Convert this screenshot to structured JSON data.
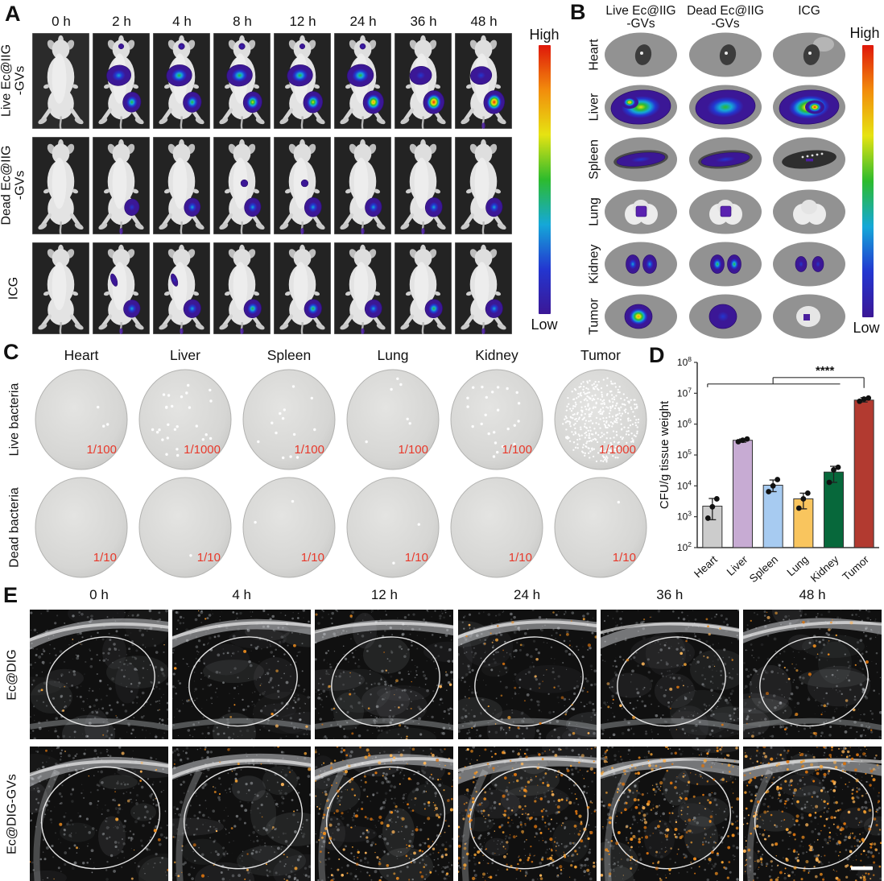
{
  "heat_colorbar": {
    "high": "High",
    "low": "Low",
    "stops": [
      "#df170a",
      "#f28c0c",
      "#e6e312",
      "#2dbb2d",
      "#15a8d8",
      "#2336d0",
      "#3b1796"
    ]
  },
  "panelA": {
    "label": "A",
    "timepoints": [
      "0 h",
      "2 h",
      "4 h",
      "8 h",
      "12 h",
      "24 h",
      "36 h",
      "48 h"
    ],
    "row_labels": [
      "Live Ec@IIG\n-GVs",
      "Dead Ec@IIG\n-GVs",
      "ICG"
    ],
    "signals": [
      [
        {
          "liver": 0,
          "tumor": 0,
          "neck": 0
        },
        {
          "liver": 0.42,
          "tumor": 0.58,
          "neck": 0.12
        },
        {
          "liver": 0.5,
          "tumor": 0.6,
          "neck": 0.3
        },
        {
          "liver": 0.52,
          "tumor": 0.66,
          "neck": 0.3
        },
        {
          "liver": 0.5,
          "tumor": 0.72,
          "neck": 0.12
        },
        {
          "liver": 0.58,
          "tumor": 0.88,
          "neck": 0.2
        },
        {
          "liver": 0.22,
          "tumor": 0.92,
          "neck": 0
        },
        {
          "liver": 0.18,
          "tumor": 0.92,
          "neck": 0
        }
      ],
      [
        {
          "liver": 0,
          "tumor": 0,
          "neck": 0
        },
        {
          "liver": 0,
          "tumor": 0.18,
          "neck": 0
        },
        {
          "liver": 0,
          "tumor": 0.35,
          "neck": 0
        },
        {
          "liver": 0.14,
          "tumor": 0.38,
          "neck": 0
        },
        {
          "liver": 0.15,
          "tumor": 0.45,
          "neck": 0
        },
        {
          "liver": 0,
          "tumor": 0.4,
          "neck": 0
        },
        {
          "liver": 0,
          "tumor": 0.45,
          "neck": 0
        },
        {
          "liver": 0,
          "tumor": 0.4,
          "neck": 0
        }
      ],
      [
        {
          "liver": 0,
          "tumor": 0,
          "neck": 0
        },
        {
          "liver": 0.16,
          "tumor": 0.4,
          "neck": 0
        },
        {
          "liver": 0.18,
          "tumor": 0.48,
          "neck": 0
        },
        {
          "liver": 0,
          "tumor": 0.5,
          "neck": 0
        },
        {
          "liver": 0,
          "tumor": 0.5,
          "neck": 0
        },
        {
          "liver": 0,
          "tumor": 0.45,
          "neck": 0
        },
        {
          "liver": 0,
          "tumor": 0.5,
          "neck": 0
        },
        {
          "liver": 0,
          "tumor": 0.48,
          "neck": 0
        }
      ]
    ]
  },
  "panelB": {
    "label": "B",
    "col_headers": [
      "Live Ec@IIG\n-GVs",
      "Dead Ec@IIG\n-GVs",
      "ICG"
    ],
    "row_labels": [
      "Heart",
      "Liver",
      "Spleen",
      "Lung",
      "Kidney",
      "Tumor"
    ],
    "cells": [
      [
        {
          "signal": 0,
          "variant": "plain"
        },
        {
          "signal": 0,
          "variant": "plain"
        },
        {
          "signal": 0,
          "variant": "patch"
        }
      ],
      [
        {
          "signal": 0.72,
          "variant": "hotspot-left"
        },
        {
          "signal": 0.6,
          "variant": "plain"
        },
        {
          "signal": 0.82,
          "variant": "hotspot-center"
        }
      ],
      [
        {
          "signal": 0.2,
          "variant": "plain"
        },
        {
          "signal": 0.33,
          "variant": "plain"
        },
        {
          "signal": 0.08,
          "variant": "dark"
        }
      ],
      [
        {
          "signal": 0.14,
          "variant": "plain"
        },
        {
          "signal": 0.14,
          "variant": "plain"
        },
        {
          "signal": 0,
          "variant": "white"
        }
      ],
      [
        {
          "signal": 0.36,
          "variant": "plain"
        },
        {
          "signal": 0.55,
          "variant": "plain"
        },
        {
          "signal": 0.3,
          "variant": "small"
        }
      ],
      [
        {
          "signal": 0.85,
          "variant": "ring"
        },
        {
          "signal": 0.3,
          "variant": "plain"
        },
        {
          "signal": 0.12,
          "variant": "white"
        }
      ]
    ]
  },
  "panelC": {
    "label": "C",
    "organ_headers": [
      "Heart",
      "Liver",
      "Spleen",
      "Lung",
      "Kidney",
      "Tumor"
    ],
    "dilution_color": "#e8392b",
    "rows": [
      {
        "label": "Live bacteria",
        "dilutions": [
          "1/100",
          "1/1000",
          "1/100",
          "1/100",
          "1/100",
          "1/1000"
        ],
        "colony_counts": [
          3,
          26,
          13,
          6,
          24,
          420
        ]
      },
      {
        "label": "Dead bacteria",
        "dilutions": [
          "1/10",
          "1/10",
          "1/10",
          "1/10",
          "1/10",
          "1/10"
        ],
        "colony_counts": [
          0,
          1,
          2,
          2,
          0,
          1
        ]
      }
    ]
  },
  "panelD": {
    "label": "D"
  },
  "chart_data": {
    "type": "bar",
    "categories": [
      "Heart",
      "Liver",
      "Spleen",
      "Lung",
      "Kidney",
      "Tumor"
    ],
    "values": [
      2200,
      300000,
      10500,
      3800,
      28000,
      6000000
    ],
    "points": [
      [
        900,
        2100,
        3800
      ],
      [
        270000,
        300000,
        330000
      ],
      [
        6500,
        10000,
        16000
      ],
      [
        1900,
        3800,
        5800
      ],
      [
        13000,
        33000,
        40000
      ],
      [
        5500000,
        6500000,
        7000000
      ]
    ],
    "error_low": [
      800,
      260000,
      6500,
      1800,
      13000,
      5200000
    ],
    "error_high": [
      3900,
      330000,
      15500,
      5800,
      43000,
      7200000
    ],
    "bar_colors": [
      "#cccccc",
      "#c7abd3",
      "#a7cbf1",
      "#f9c55e",
      "#07683b",
      "#b23a30"
    ],
    "ylabel": "CFU/g tissue weight",
    "ylim": [
      100,
      100000000
    ],
    "yscale": "log",
    "significance": {
      "label": "****",
      "comparison": "Heart-Kidney group vs Tumor"
    }
  },
  "panelE": {
    "label": "E",
    "timepoints": [
      "0 h",
      "4 h",
      "12 h",
      "24 h",
      "36 h",
      "48 h"
    ],
    "row_labels": [
      "Ec@DIG",
      "Ec@DIG-GVs"
    ],
    "speckle_color": "#ef8e1e",
    "speckle_density": [
      [
        0.02,
        0.03,
        0.05,
        0.1,
        0.06,
        0.08
      ],
      [
        0.05,
        0.09,
        0.4,
        0.55,
        0.5,
        0.72
      ]
    ]
  }
}
